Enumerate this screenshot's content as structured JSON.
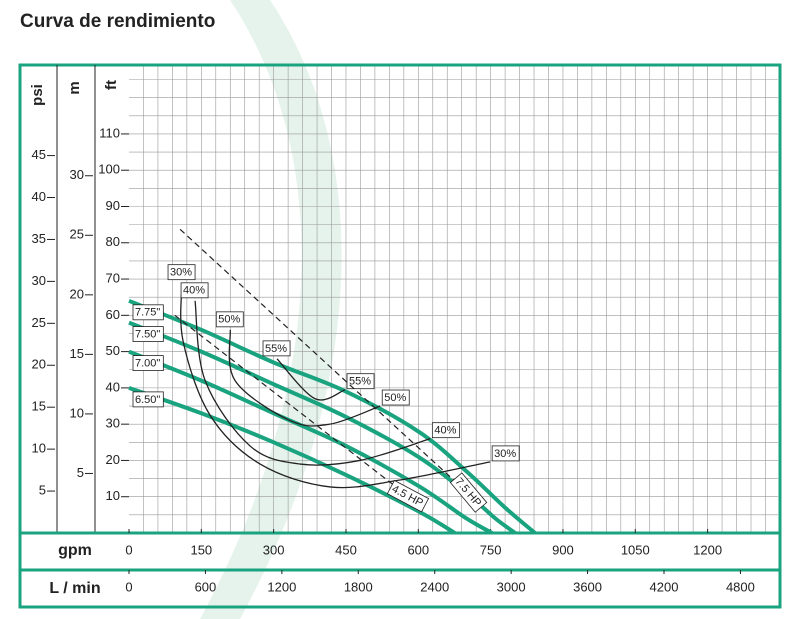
{
  "chart_data": {
    "type": "line",
    "title": "Curva de rendimiento",
    "ylabel": "ft",
    "ylim": [
      0,
      129
    ],
    "yticks": [
      10,
      20,
      30,
      40,
      50,
      60,
      70,
      80,
      90,
      100,
      110
    ],
    "y2label": "psi",
    "y2lim": [
      0,
      55.8
    ],
    "y2ticks": [
      5,
      10,
      15,
      20,
      25,
      30,
      35,
      40,
      45
    ],
    "y3label": "m",
    "y3lim": [
      0,
      39.3
    ],
    "y3ticks": [
      5,
      10,
      15,
      20,
      25,
      30
    ],
    "xlabel": "gpm",
    "xlim": [
      0,
      1346
    ],
    "xticks": [
      0,
      150,
      300,
      450,
      600,
      750,
      900,
      1050,
      1200
    ],
    "x2label": "L / min",
    "x2lim": [
      0,
      5095
    ],
    "x2ticks": [
      0,
      600,
      1200,
      1800,
      2400,
      3000,
      3600,
      4200,
      4800
    ],
    "grid": true,
    "series": [
      {
        "name": "7.75\"",
        "color": "#1aa37f",
        "x": [
          0,
          150,
          300,
          450,
          600,
          700,
          780,
          842
        ],
        "values": [
          64,
          56,
          47,
          39,
          28,
          17,
          7,
          0
        ]
      },
      {
        "name": "7.50\"",
        "color": "#1aa37f",
        "x": [
          0,
          150,
          300,
          450,
          600,
          700,
          760,
          801
        ],
        "values": [
          58,
          50,
          41,
          32,
          21,
          11,
          4,
          0
        ]
      },
      {
        "name": "7.00\"",
        "color": "#1aa37f",
        "x": [
          0,
          150,
          300,
          450,
          600,
          700,
          753
        ],
        "values": [
          50,
          42,
          33,
          24,
          13,
          4,
          0
        ]
      },
      {
        "name": "6.50\"",
        "color": "#1aa37f",
        "x": [
          0,
          150,
          300,
          450,
          600,
          676
        ],
        "values": [
          40,
          33,
          25,
          16,
          6,
          0
        ]
      }
    ],
    "efficiency": [
      {
        "name": "30%",
        "color": "#222222",
        "x": [
          110,
          112,
          168,
          272,
          417,
          562,
          749
        ],
        "values": [
          69,
          53,
          32.5,
          19,
          12.7,
          14.6,
          19.6
        ]
      },
      {
        "name": "40%",
        "color": "#222222",
        "x": [
          137,
          158,
          251,
          355,
          479,
          625
        ],
        "values": [
          64,
          42,
          24,
          19,
          20,
          26
        ]
      },
      {
        "name": "50%",
        "color": "#222222",
        "x": [
          210,
          220,
          334,
          417,
          521
        ],
        "values": [
          56,
          42,
          31,
          30,
          35
        ]
      },
      {
        "name": "55%",
        "color": "#222222",
        "x": [
          307,
          386,
          448
        ],
        "values": [
          48,
          37,
          39.5
        ]
      }
    ],
    "power": [
      {
        "name": "7.5 HP",
        "color": "#222222",
        "x": [
          106,
          707
        ],
        "values": [
          83.7,
          10.5
        ]
      },
      {
        "name": "4.5 HP",
        "color": "#222222",
        "x": [
          95,
          583
        ],
        "values": [
          60,
          9.7
        ]
      }
    ]
  }
}
